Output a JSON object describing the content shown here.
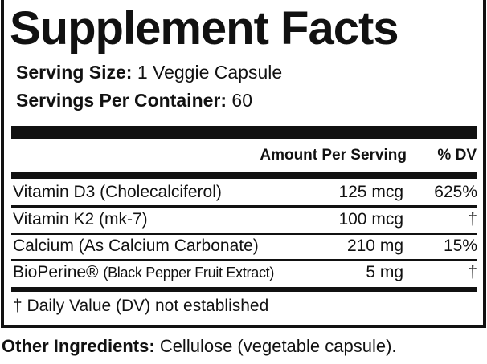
{
  "title": "Supplement Facts",
  "serving_size": {
    "label": "Serving Size:",
    "value": "1 Veggie Capsule"
  },
  "servings_per_container": {
    "label": "Servings Per Container:",
    "value": "60"
  },
  "columns": {
    "amount": "Amount Per Serving",
    "dv": "% DV"
  },
  "rows": [
    {
      "name": "Vitamin D3 (Cholecalciferol)",
      "amount": "125 mcg",
      "dv": "625%"
    },
    {
      "name": "Vitamin K2 (mk-7)",
      "amount": "100 mcg",
      "dv": "†"
    },
    {
      "name": "Calcium (As Calcium Carbonate)",
      "amount": "210 mg",
      "dv": "15%"
    },
    {
      "name": "BioPerine®",
      "name_note": "(Black Pepper Fruit Extract)",
      "amount": "5 mg",
      "dv": "†"
    }
  ],
  "footnote": "† Daily Value (DV) not established",
  "other_ingredients": {
    "label": "Other Ingredients:",
    "value": "Cellulose (vegetable capsule)."
  }
}
